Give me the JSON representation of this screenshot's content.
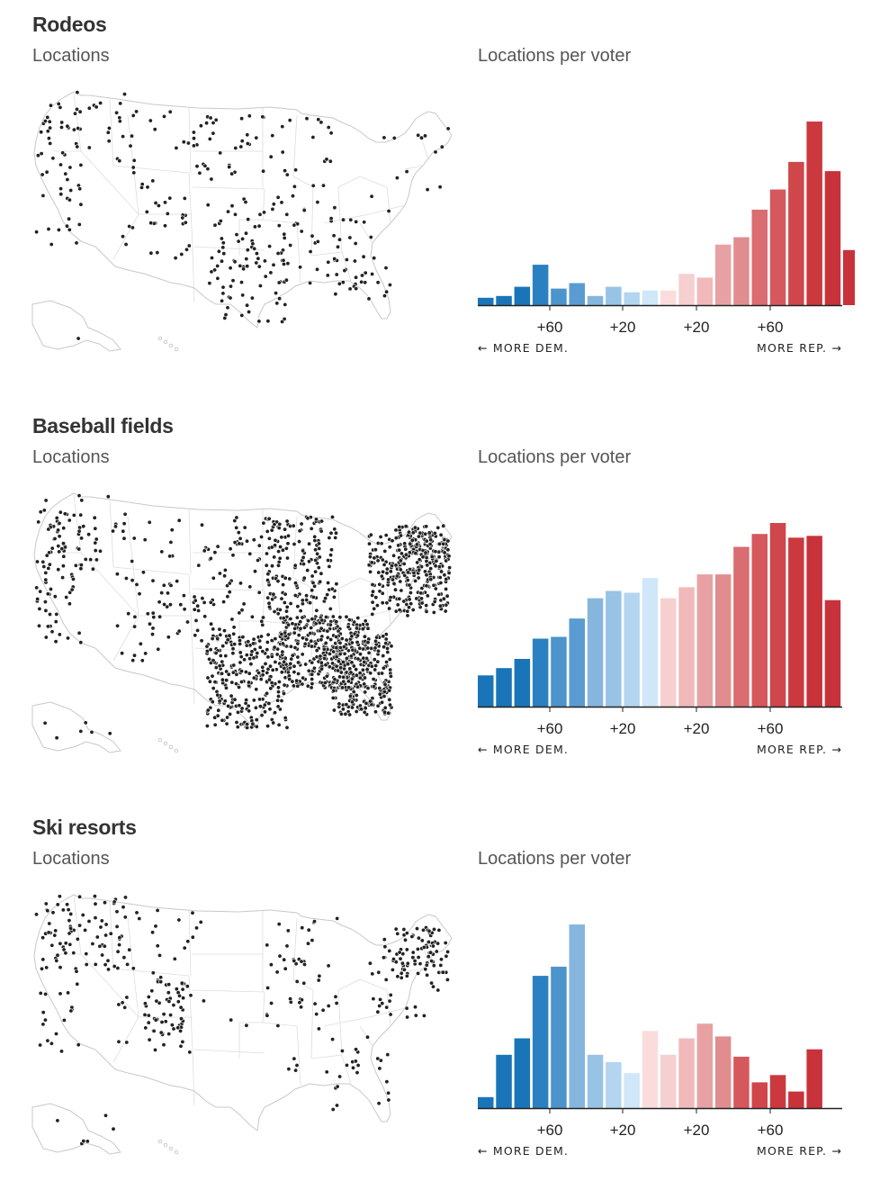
{
  "colors": {
    "dem_dark": "#1a74b8",
    "rep_dark": "#c8323a",
    "map_outline": "#c8c8c8",
    "dot": "#222222"
  },
  "panels": [
    {
      "title": "Rodeos",
      "left_subtitle": "Locations",
      "right_subtitle": "Locations per voter",
      "density": "rodeo"
    },
    {
      "title": "Baseball fields",
      "left_subtitle": "Locations",
      "right_subtitle": "Locations per voter",
      "density": "baseball"
    },
    {
      "title": "Ski resorts",
      "left_subtitle": "Locations",
      "right_subtitle": "Locations per voter",
      "density": "ski"
    }
  ],
  "chart_data": [
    {
      "type": "bar",
      "title": "Rodeos — Locations per voter",
      "xlabel_left": "← MORE DEM.",
      "xlabel_right": "MORE REP. →",
      "tick_labels": [
        "+60",
        "+20",
        "+20",
        "+60"
      ],
      "values": [
        4,
        5,
        10,
        22,
        9,
        12,
        5,
        10,
        7,
        8,
        8,
        17,
        15,
        33,
        37,
        52,
        63,
        78,
        100,
        73,
        30
      ],
      "ylim": [
        0,
        100
      ]
    },
    {
      "type": "bar",
      "title": "Baseball fields — Locations per voter",
      "xlabel_left": "← MORE DEM.",
      "xlabel_right": "MORE REP. →",
      "tick_labels": [
        "+60",
        "+20",
        "+20",
        "+60"
      ],
      "values": [
        17,
        21,
        26,
        37,
        38,
        48,
        59,
        63,
        62,
        70,
        59,
        65,
        72,
        72,
        87,
        94,
        100,
        92,
        93,
        58
      ],
      "ylim": [
        0,
        100
      ]
    },
    {
      "type": "bar",
      "title": "Ski resorts — Locations per voter",
      "xlabel_left": "← MORE DEM.",
      "xlabel_right": "MORE REP. →",
      "tick_labels": [
        "+60",
        "+20",
        "+20",
        "+60"
      ],
      "values": [
        6,
        29,
        38,
        72,
        77,
        100,
        29,
        25,
        19,
        42,
        29,
        38,
        46,
        39,
        28,
        14,
        18,
        9,
        32
      ],
      "ylim": [
        0,
        100
      ]
    }
  ],
  "bar_colors": [
    "#1a74b8",
    "#1a74b8",
    "#1a74b8",
    "#2a80c1",
    "#4d93cc",
    "#5a9cd2",
    "#86b6de",
    "#98c3e5",
    "#b3d5ef",
    "#cfe7f8",
    "#fbdcdd",
    "#f6cfd0",
    "#f2b9ba",
    "#e8a1a3",
    "#e18d90",
    "#d96d71",
    "#d5585d",
    "#cf464b",
    "#cb393f",
    "#c8323a",
    "#c8323a"
  ]
}
